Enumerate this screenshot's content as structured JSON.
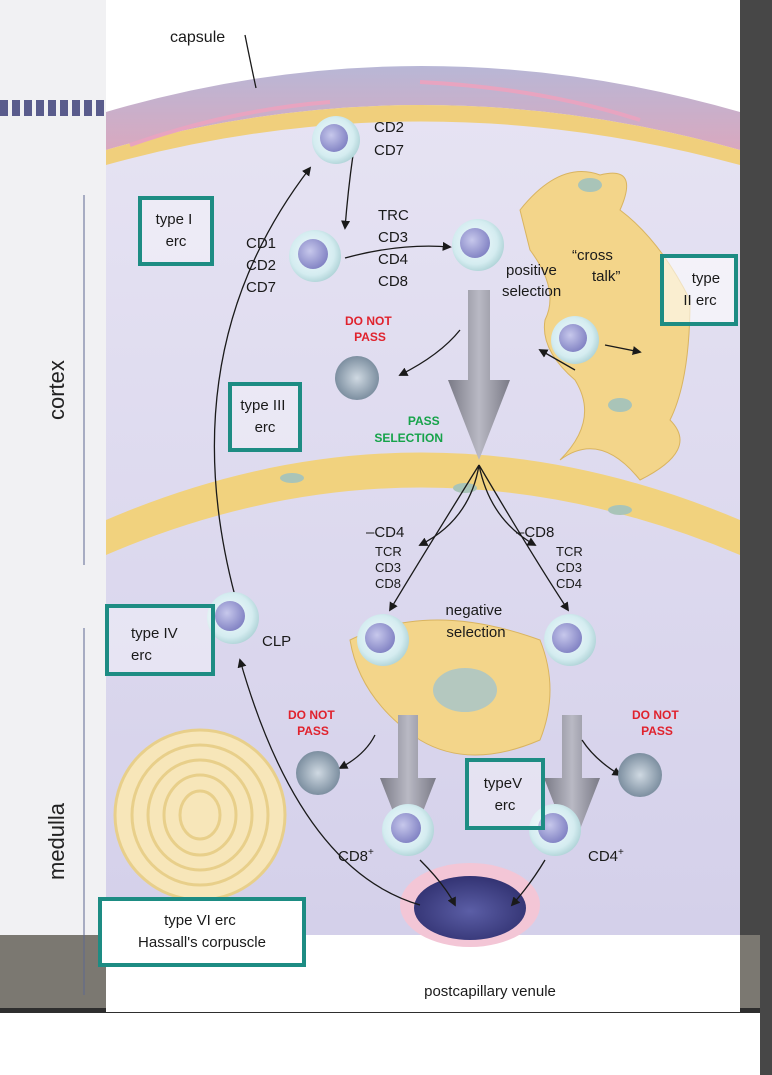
{
  "diagram": {
    "capsule": "capsule",
    "cortex": "cortex",
    "medulla": "medulla",
    "cells_top": [
      "CD2",
      "CD7"
    ],
    "cells_mid": [
      "CD1",
      "CD2",
      "CD7"
    ],
    "cells_dp": [
      "TRC",
      "CD3",
      "CD4",
      "CD8"
    ],
    "type_i_erc": [
      "type I",
      "erc"
    ],
    "type_ii_erc": [
      "type",
      "II erc"
    ],
    "type_iii_erc": [
      "type III",
      "erc"
    ],
    "type_iv_erc": [
      "type IV",
      "erc"
    ],
    "type_v_erc": [
      "typeV",
      "erc"
    ],
    "type_vi_erc": [
      "type VI erc",
      "Hassall's corpuscle"
    ],
    "cross_talk": [
      "“cross",
      "talk”"
    ],
    "positive_selection": [
      "positive",
      "selection"
    ],
    "do_not_pass": [
      "DO NOT",
      "PASS"
    ],
    "pass_selection": [
      "PASS",
      "SELECTION"
    ],
    "minus_cd4": "–CD4",
    "minus_cd8": "–CD8",
    "cd8_stack": [
      "TCR",
      "CD3",
      "CD8"
    ],
    "cd4_stack": [
      "TCR",
      "CD3",
      "CD4"
    ],
    "negative_selection": [
      "negative",
      "selection"
    ],
    "clp": "CLP",
    "cd8_plus": "CD8",
    "cd4_plus": "CD4",
    "plus": "+",
    "postcapillary_venule": "postcapillary venule"
  },
  "colors": {
    "box": "#1d8c83",
    "red": "#e0222d",
    "green": "#16a34a",
    "tissue": "#dcd8ee",
    "stromal": "#f1d58a",
    "frame": "#4a4a4a"
  }
}
